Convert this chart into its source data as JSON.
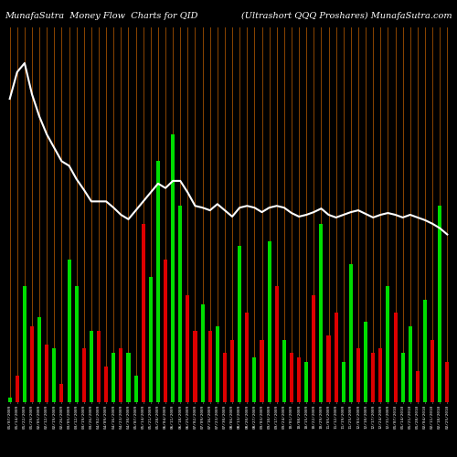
{
  "title_left": "MunafaSutra  Money Flow  Charts for QID",
  "title_right": "(Ultrashort QQQ Proshares) MunafaSutra.com",
  "background_color": "#000000",
  "bar_colors": [
    "green",
    "red",
    "green",
    "red",
    "green",
    "red",
    "green",
    "red",
    "green",
    "green",
    "red",
    "green",
    "red",
    "red",
    "green",
    "red",
    "green",
    "green",
    "red",
    "green",
    "green",
    "red",
    "green",
    "green",
    "red",
    "red",
    "green",
    "red",
    "green",
    "red",
    "red",
    "green",
    "red",
    "green",
    "red",
    "green",
    "red",
    "green",
    "red",
    "red",
    "green",
    "red",
    "green",
    "red",
    "red",
    "green",
    "green",
    "red",
    "green",
    "red",
    "red",
    "green",
    "red",
    "green",
    "green",
    "red",
    "green",
    "red",
    "green",
    "red"
  ],
  "bar_heights": [
    5,
    30,
    130,
    85,
    95,
    65,
    60,
    20,
    160,
    130,
    60,
    80,
    80,
    40,
    55,
    60,
    55,
    30,
    200,
    140,
    270,
    160,
    300,
    220,
    120,
    80,
    110,
    80,
    85,
    55,
    70,
    175,
    100,
    50,
    70,
    180,
    130,
    70,
    55,
    50,
    45,
    120,
    200,
    75,
    100,
    45,
    155,
    60,
    90,
    55,
    60,
    130,
    100,
    55,
    85,
    35,
    115,
    70,
    220,
    45
  ],
  "line_values": [
    340,
    370,
    380,
    345,
    320,
    300,
    285,
    270,
    265,
    250,
    238,
    225,
    225,
    225,
    218,
    210,
    205,
    215,
    225,
    235,
    245,
    240,
    248,
    248,
    235,
    220,
    218,
    215,
    222,
    215,
    208,
    218,
    220,
    218,
    213,
    218,
    220,
    218,
    212,
    208,
    210,
    213,
    217,
    210,
    207,
    210,
    213,
    215,
    211,
    207,
    210,
    212,
    210,
    207,
    210,
    207,
    204,
    200,
    195,
    188
  ],
  "x_labels": [
    "01/07/2009",
    "01/14/2009",
    "01/22/2009",
    "01/29/2009",
    "02/05/2009",
    "02/12/2009",
    "02/19/2009",
    "02/26/2009",
    "03/05/2009",
    "03/12/2009",
    "03/19/2009",
    "03/26/2009",
    "04/02/2009",
    "04/09/2009",
    "04/16/2009",
    "04/23/2009",
    "04/30/2009",
    "05/07/2009",
    "05/14/2009",
    "05/21/2009",
    "05/28/2009",
    "06/04/2009",
    "06/11/2009",
    "06/18/2009",
    "06/25/2009",
    "07/02/2009",
    "07/09/2009",
    "07/16/2009",
    "07/23/2009",
    "07/30/2009",
    "08/06/2009",
    "08/13/2009",
    "08/20/2009",
    "08/27/2009",
    "09/03/2009",
    "09/10/2009",
    "09/17/2009",
    "09/24/2009",
    "10/01/2009",
    "10/08/2009",
    "10/15/2009",
    "10/22/2009",
    "10/29/2009",
    "11/05/2009",
    "11/12/2009",
    "11/19/2009",
    "11/25/2009",
    "12/03/2009",
    "12/10/2009",
    "12/17/2009",
    "12/24/2009",
    "12/31/2009",
    "01/07/2010",
    "01/14/2010",
    "01/21/2010",
    "01/28/2010",
    "02/04/2010",
    "02/11/2010",
    "02/18/2010",
    "02/25/2010"
  ],
  "orange_line_color": "#8B4500",
  "white_line_color": "#ffffff",
  "green_color": "#00dd00",
  "red_color": "#dd0000",
  "title_fontsize": 7,
  "ylim_max": 420,
  "bar_width": 0.5
}
